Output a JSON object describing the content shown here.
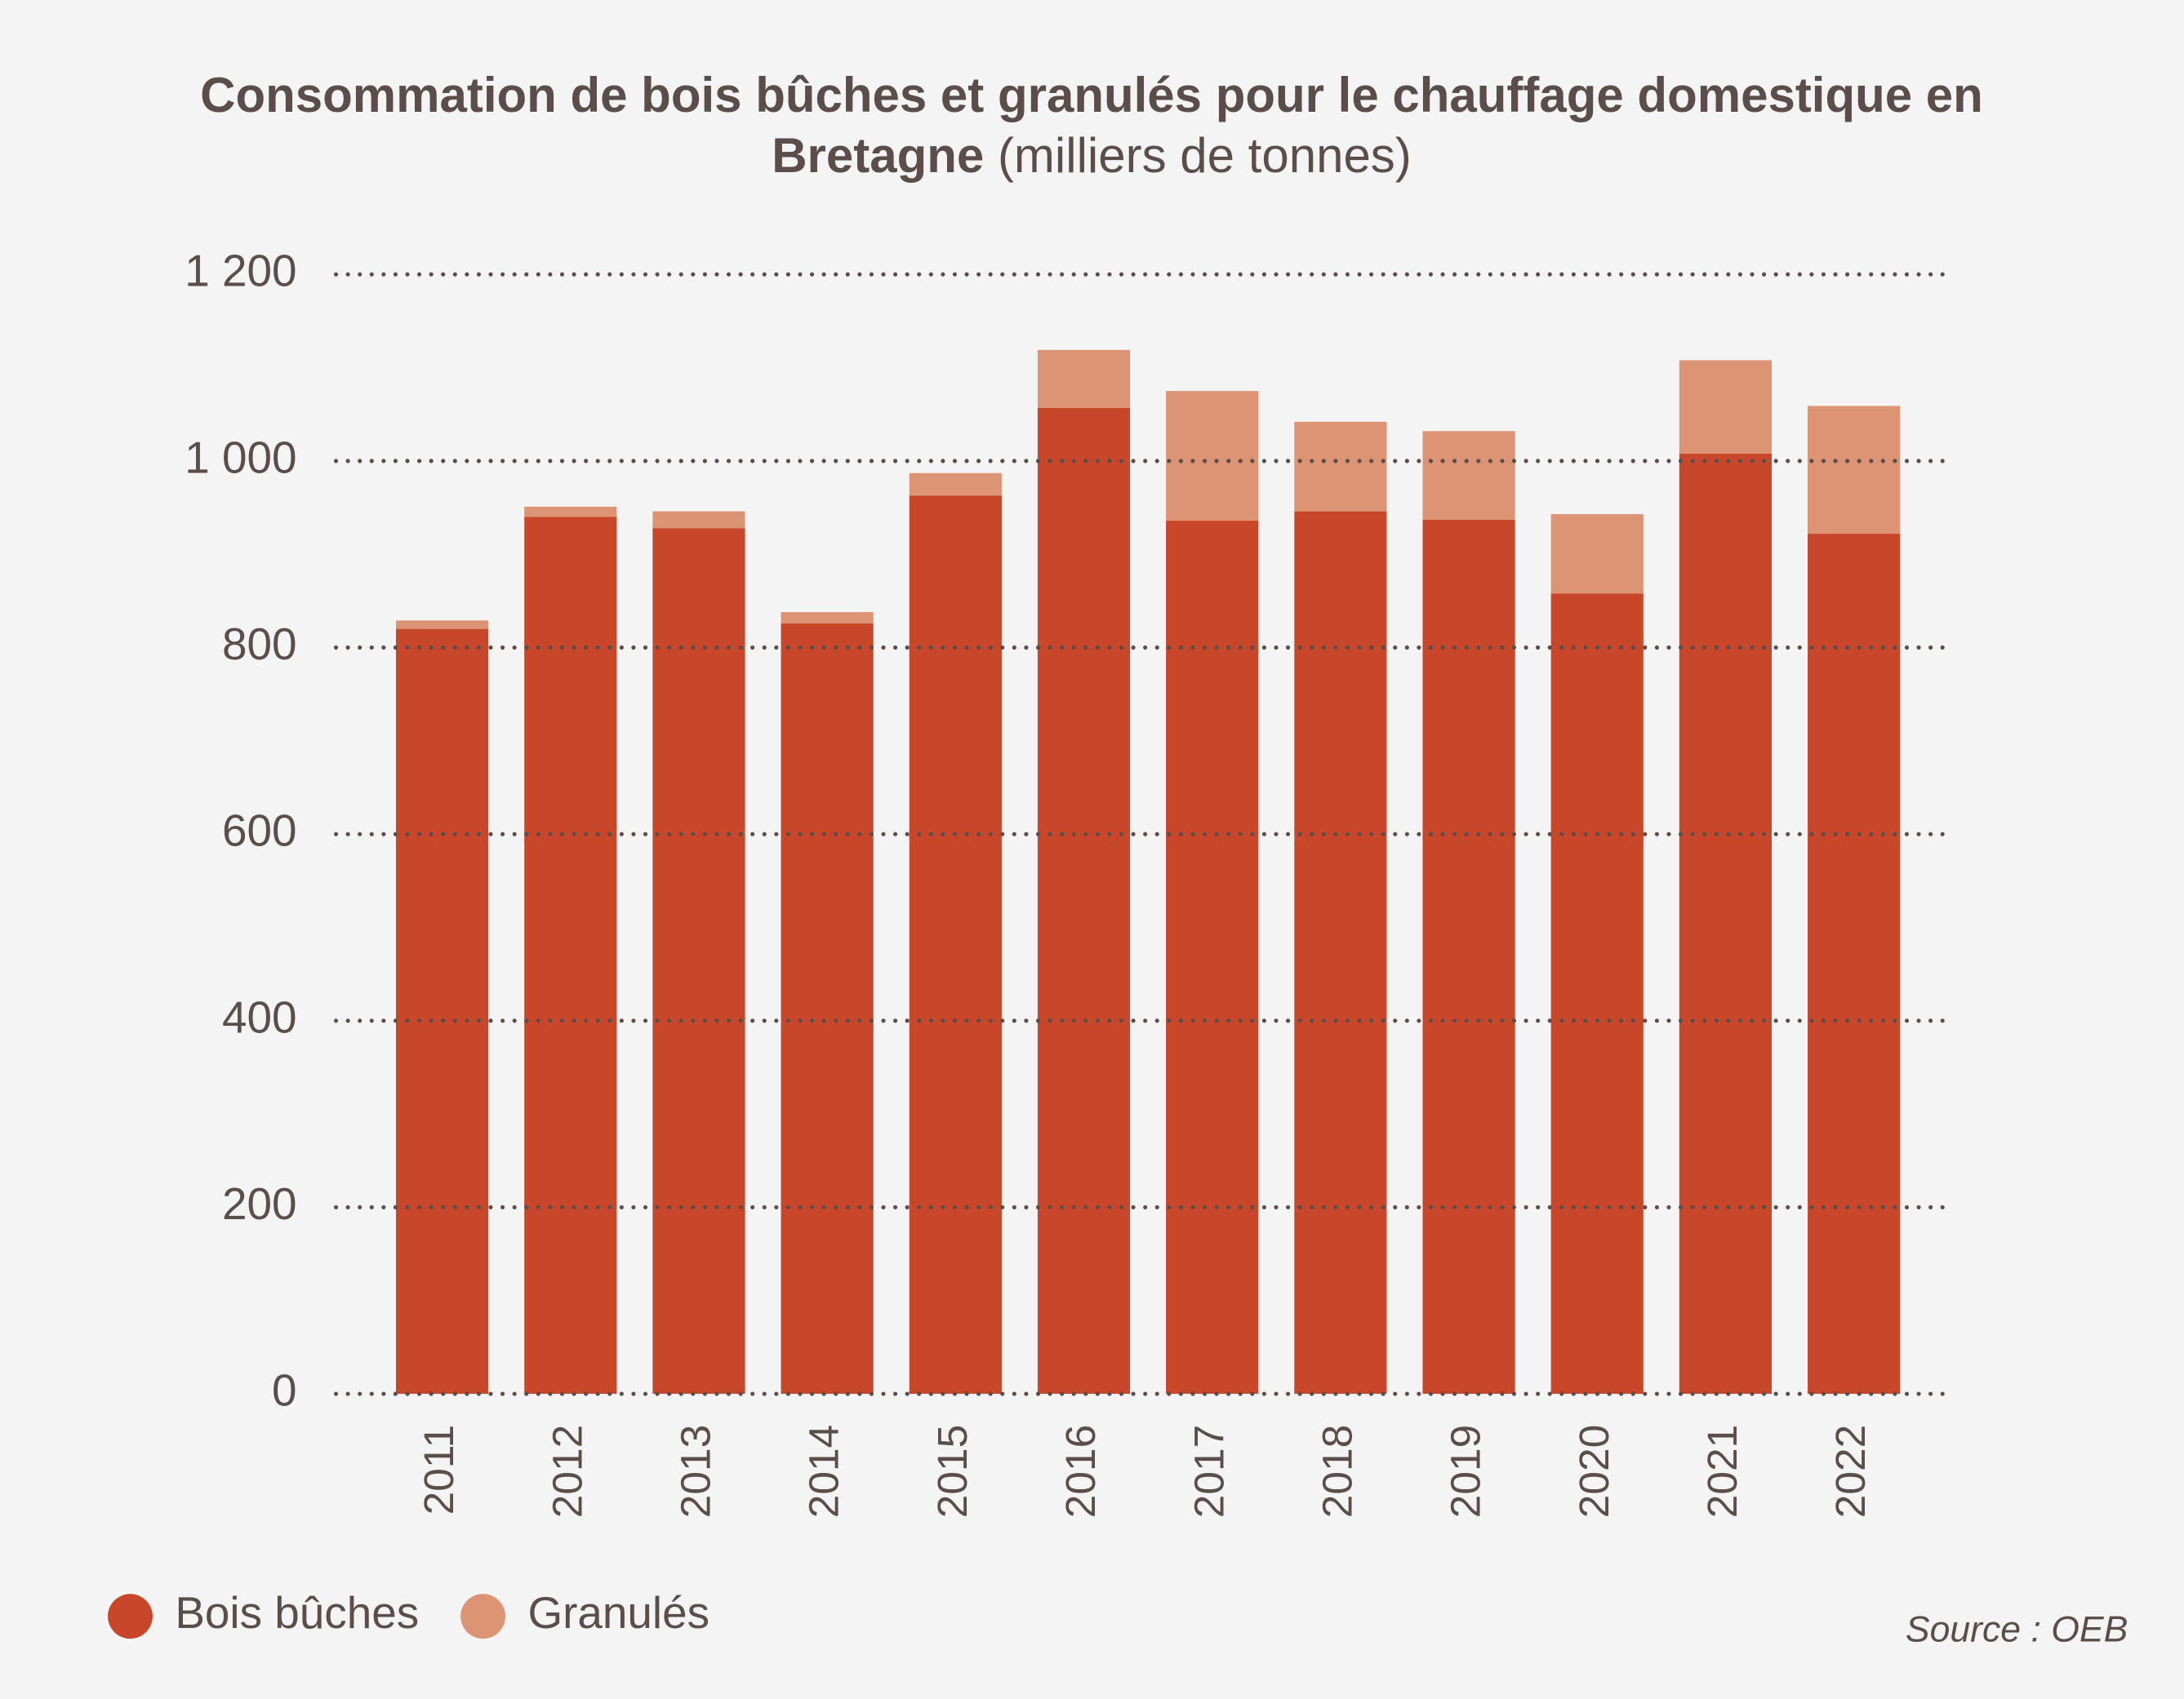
{
  "chart_data": {
    "type": "stacked-bar",
    "title": "Consommation de bois bûches et granulés pour le chauffage domestique en Bretagne",
    "subtitle": "(milliers de tonnes)",
    "categories": [
      "2011",
      "2012",
      "2013",
      "2014",
      "2015",
      "2016",
      "2017",
      "2018",
      "2019",
      "2020",
      "2021",
      "2022"
    ],
    "series": [
      {
        "name": "Bois bûches",
        "color": "#c8462a",
        "values": [
          820,
          940,
          928,
          826,
          963,
          1057,
          936,
          946,
          937,
          858,
          1008,
          922
        ]
      },
      {
        "name": "Granulés",
        "color": "#dc9474",
        "values": [
          9,
          11,
          18,
          12,
          24,
          62,
          139,
          96,
          95,
          85,
          100,
          137
        ]
      }
    ],
    "ylim": [
      0,
      1200
    ],
    "yticks": [
      0,
      200,
      400,
      600,
      800,
      {
        "value": 1000,
        "label": "1 000"
      },
      {
        "value": 1200,
        "label": "1 200"
      }
    ],
    "grid": true,
    "legend": "bottom-left",
    "source": "Source : OEB"
  }
}
